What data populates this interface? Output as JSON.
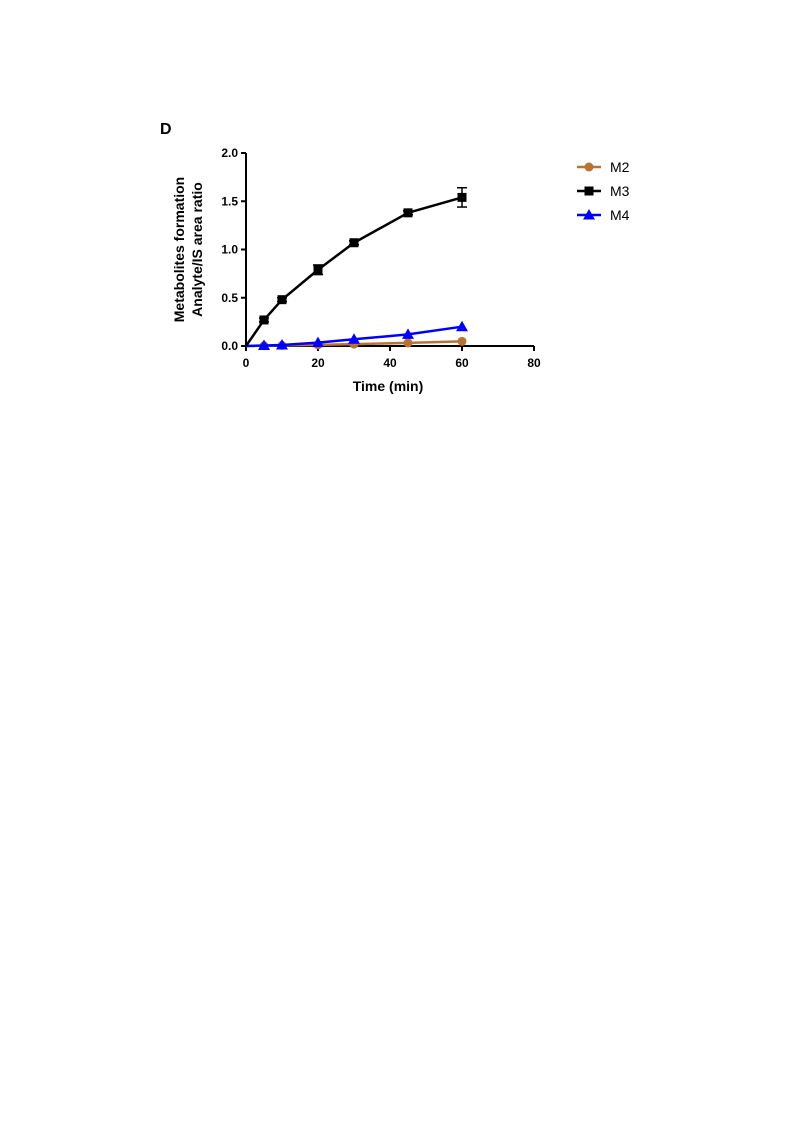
{
  "panel_label": "D",
  "chart_data": {
    "type": "line",
    "xlabel": "Time (min)",
    "ylabel_lines": [
      "Metabolites formation",
      "Analyte/IS area ratio"
    ],
    "xlim": [
      0,
      80
    ],
    "ylim": [
      0,
      2.0
    ],
    "xticks": [
      0,
      20,
      40,
      60,
      80
    ],
    "yticks": [
      0,
      0.5,
      1.0,
      1.5,
      2.0
    ],
    "xtick_labels": [
      "0",
      "20",
      "40",
      "60",
      "80"
    ],
    "ytick_labels": [
      "0.0",
      "0.5",
      "1.0",
      "1.5",
      "2.0"
    ],
    "grid": false,
    "legend_position": "right",
    "series": [
      {
        "name": "M2",
        "color": "#b87333",
        "marker": "circle",
        "x": [
          0,
          5,
          10,
          20,
          30,
          45,
          60
        ],
        "y": [
          0,
          0.003,
          0.006,
          0.012,
          0.02,
          0.032,
          0.048
        ],
        "err": [
          0,
          0,
          0,
          0,
          0,
          0,
          0
        ]
      },
      {
        "name": "M3",
        "color": "#000000",
        "marker": "square",
        "x": [
          0,
          5,
          10,
          20,
          30,
          45,
          60
        ],
        "y": [
          0,
          0.27,
          0.48,
          0.79,
          1.07,
          1.38,
          1.54
        ],
        "err": [
          0,
          0.02,
          0.02,
          0.05,
          0.02,
          0.02,
          0.1
        ]
      },
      {
        "name": "M4",
        "color": "#0000ff",
        "marker": "triangle",
        "x": [
          0,
          5,
          10,
          20,
          30,
          45,
          60
        ],
        "y": [
          0,
          0.005,
          0.01,
          0.035,
          0.07,
          0.12,
          0.2
        ],
        "err": [
          0,
          0,
          0,
          0,
          0,
          0,
          0
        ]
      }
    ]
  }
}
